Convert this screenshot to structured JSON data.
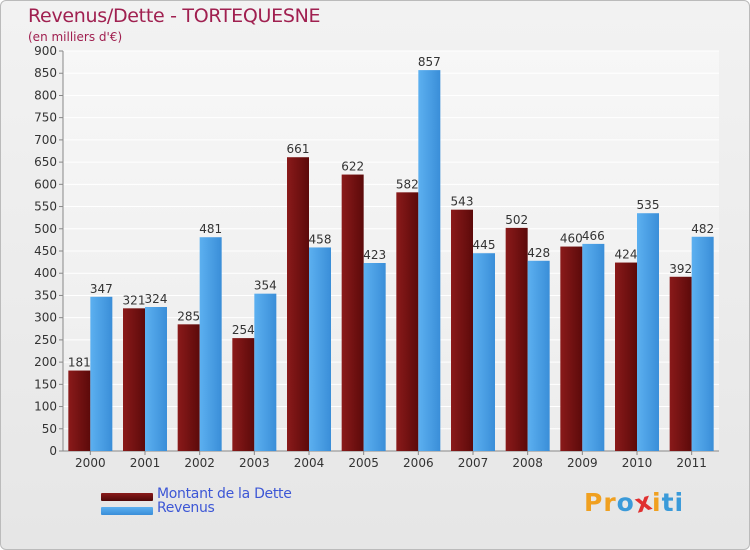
{
  "colors": {
    "dette": "#7a1414",
    "revenus": "#4aa0e8",
    "title": "#a02050",
    "legend_text": "#3d57d6"
  },
  "chart_data": {
    "type": "bar",
    "title": "Revenus/Dette - TORTEQUESNE",
    "subtitle": "(en milliers d'€)",
    "xlabel": "",
    "ylabel": "",
    "ylim": [
      0,
      900
    ],
    "yticks": [
      0,
      50,
      100,
      150,
      200,
      250,
      300,
      350,
      400,
      450,
      500,
      550,
      600,
      650,
      700,
      750,
      800,
      850,
      900
    ],
    "grid": true,
    "categories": [
      "2000",
      "2001",
      "2002",
      "2003",
      "2004",
      "2005",
      "2006",
      "2007",
      "2008",
      "2009",
      "2010",
      "2011"
    ],
    "series": [
      {
        "name": "Montant de la Dette",
        "values": [
          181,
          321,
          285,
          254,
          661,
          622,
          582,
          543,
          502,
          460,
          424,
          392
        ]
      },
      {
        "name": "Revenus",
        "values": [
          347,
          324,
          481,
          354,
          458,
          423,
          857,
          445,
          428,
          466,
          535,
          482
        ]
      }
    ],
    "legend": "bottom-left"
  },
  "logo": {
    "letters": [
      "P",
      "r",
      "o",
      "x",
      "i",
      "t",
      "i"
    ],
    "colors": [
      "#f0a020",
      "#f0a020",
      "#3a9ad9",
      "#e03030",
      "#f0a020",
      "#3a9ad9",
      "#3a9ad9"
    ]
  }
}
